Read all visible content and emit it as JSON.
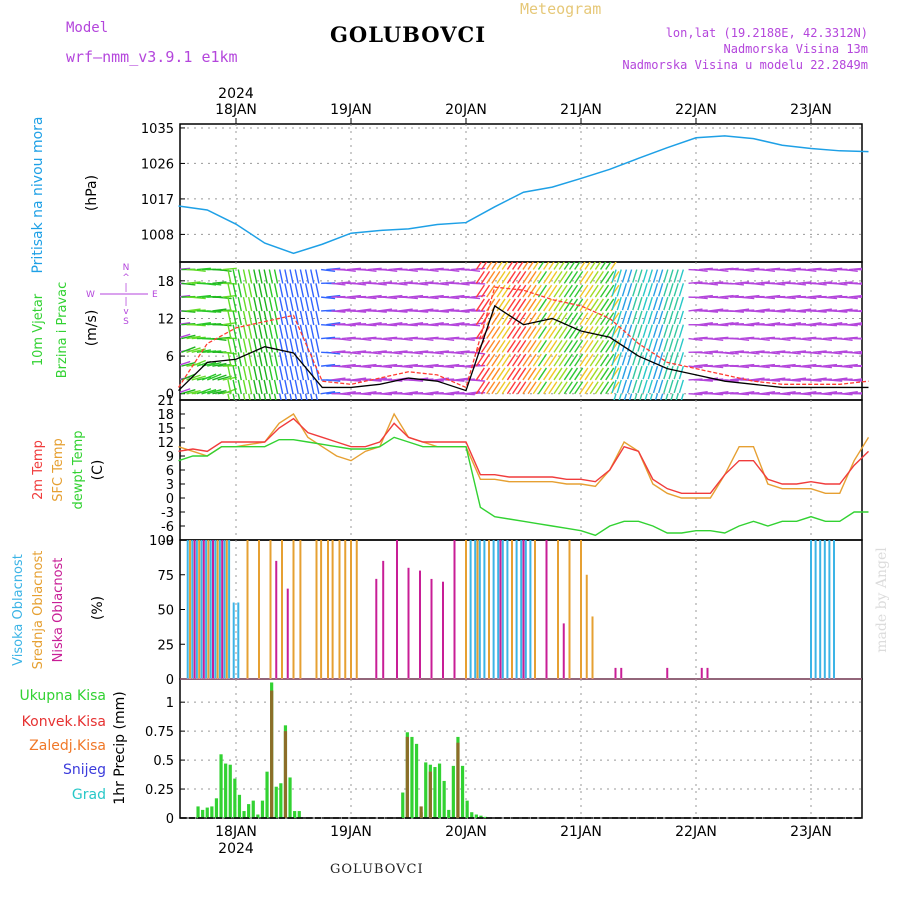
{
  "header": {
    "model_label": "Model",
    "model_name": "wrf—nmm_v3.9.1  e1km",
    "station": "GOLUBOVCI",
    "product": "Meteogram",
    "lonlat": "lon,lat (19.2188E, 42.3312N)",
    "elevation": "Nadmorska Visina 13m",
    "model_elevation": "Nadmorska Visina u modelu 22.2849m",
    "footer_station": "GOLUBOVCI",
    "credit": "made by Angel"
  },
  "colors": {
    "pressure": "#1ea0e6",
    "wind_speed": "#000000",
    "wind_gust": "#ff3c32",
    "t2m": "#f03c3c",
    "tsfc": "#e6a032",
    "dewpt": "#32d232",
    "cloud_high": "#3cb4e6",
    "cloud_mid": "#e6a032",
    "cloud_low": "#c81e96",
    "precip_total": "#32d232",
    "precip_conv": "#e63232",
    "precip_large": "#f07828",
    "snow": "#3c3cdc",
    "grad": "#28c8c8",
    "purple": "#b446dc"
  },
  "chart_data": [
    {
      "type": "line",
      "panel": "pressure",
      "ylabel_blue": "Pritisak na nivou mora",
      "ylabel_units": "(hPa)",
      "x_unit": "days since 2024-01-18 00:00",
      "ylim": [
        1001,
        1036
      ],
      "y_ticks": [
        1008,
        1017,
        1026,
        1035
      ],
      "grid": true,
      "x": [
        -0.5,
        -0.25,
        0,
        0.25,
        0.5,
        0.75,
        1,
        1.25,
        1.5,
        1.75,
        2,
        2.25,
        2.5,
        2.75,
        3,
        3.25,
        3.5,
        3.75,
        4,
        4.25,
        4.5,
        4.75,
        5,
        5.25,
        5.5
      ],
      "values": [
        1015.2,
        1014.2,
        1010.6,
        1005.8,
        1003.2,
        1005.5,
        1008.3,
        1009.0,
        1009.4,
        1010.5,
        1011.0,
        1015.0,
        1018.7,
        1020.0,
        1022.2,
        1024.5,
        1027.3,
        1030.0,
        1032.5,
        1033.0,
        1032.3,
        1030.6,
        1029.8,
        1029.2,
        1029.0
      ]
    },
    {
      "type": "line",
      "panel": "wind",
      "ylabel_green": [
        "10m Vjetar",
        "Brzina i Pravac"
      ],
      "ylabel_units": "(m/s)",
      "compass": [
        "N",
        "^",
        "|",
        "W",
        "E",
        "|",
        "v",
        "S"
      ],
      "ylim": [
        -1,
        21
      ],
      "y_ticks": [
        0,
        6,
        12,
        18
      ],
      "series": [
        {
          "name": "speed",
          "x": [
            -0.5,
            -0.25,
            0,
            0.25,
            0.5,
            0.75,
            1,
            1.25,
            1.5,
            1.75,
            2,
            2.25,
            2.5,
            2.75,
            3,
            3.25,
            3.5,
            3.75,
            4,
            4.25,
            4.5,
            4.75,
            5,
            5.25,
            5.5
          ],
          "values": [
            0.5,
            5.0,
            5.5,
            7.5,
            6.5,
            1.0,
            1.0,
            1.5,
            2.5,
            2.0,
            0.5,
            14.0,
            11.0,
            12.0,
            10.0,
            9.0,
            6.0,
            4.0,
            3.0,
            2.0,
            1.5,
            1.0,
            1.0,
            1.0,
            1.0
          ]
        },
        {
          "name": "gust",
          "x": [
            -0.5,
            -0.25,
            0,
            0.25,
            0.5,
            0.75,
            1,
            1.25,
            1.5,
            1.75,
            2,
            2.25,
            2.5,
            2.75,
            3,
            3.25,
            3.5,
            3.75,
            4,
            4.25,
            4.5,
            4.75,
            5,
            5.25,
            5.5
          ],
          "values": [
            1.0,
            8.0,
            10.5,
            11.5,
            12.5,
            2.0,
            1.5,
            2.5,
            3.5,
            3.0,
            1.0,
            17.0,
            16.5,
            15.0,
            14.0,
            12.0,
            8.0,
            5.0,
            4.0,
            3.0,
            2.0,
            1.5,
            1.5,
            1.5,
            2.0
          ]
        }
      ]
    },
    {
      "type": "line",
      "panel": "temperature",
      "ylabel_red": "2m Temp",
      "ylabel_orange": "SFC Temp",
      "ylabel_green": "dewpt Temp",
      "ylabel_units": "(C)",
      "ylim": [
        -9,
        21
      ],
      "y_ticks": [
        -9,
        -6,
        -3,
        0,
        3,
        6,
        9,
        12,
        15,
        18,
        21
      ],
      "series": [
        {
          "name": "2m Temp",
          "x": [
            -0.5,
            -0.375,
            -0.25,
            -0.125,
            0,
            0.125,
            0.25,
            0.375,
            0.5,
            0.625,
            0.75,
            0.875,
            1,
            1.125,
            1.25,
            1.375,
            1.5,
            1.625,
            1.75,
            1.875,
            2,
            2.125,
            2.25,
            2.375,
            2.5,
            2.625,
            2.75,
            2.875,
            3,
            3.125,
            3.25,
            3.375,
            3.5,
            3.625,
            3.75,
            3.875,
            4,
            4.125,
            4.25,
            4.375,
            4.5,
            4.625,
            4.75,
            4.875,
            5,
            5.125,
            5.25,
            5.375,
            5.5
          ],
          "values": [
            10,
            10.5,
            10,
            12,
            12,
            12,
            12,
            15,
            17,
            14,
            13,
            12,
            11,
            11,
            12,
            16,
            13,
            12,
            12,
            12,
            12,
            5,
            5,
            4.5,
            4.5,
            4.5,
            4.5,
            4,
            4,
            3.5,
            6,
            11,
            10,
            4,
            2,
            1,
            1,
            1,
            5,
            8,
            8,
            4,
            3,
            3,
            3.5,
            3,
            3,
            7,
            10
          ]
        },
        {
          "name": "SFC Temp",
          "x": [
            -0.5,
            -0.375,
            -0.25,
            -0.125,
            0,
            0.125,
            0.25,
            0.375,
            0.5,
            0.625,
            0.75,
            0.875,
            1,
            1.125,
            1.25,
            1.375,
            1.5,
            1.625,
            1.75,
            1.875,
            2,
            2.125,
            2.25,
            2.375,
            2.5,
            2.625,
            2.75,
            2.875,
            3,
            3.125,
            3.25,
            3.375,
            3.5,
            3.625,
            3.75,
            3.875,
            4,
            4.125,
            4.25,
            4.375,
            4.5,
            4.625,
            4.75,
            4.875,
            5,
            5.125,
            5.25,
            5.375,
            5.5
          ],
          "values": [
            11,
            10,
            9,
            11,
            11,
            11.5,
            12,
            16,
            18,
            13,
            11,
            9,
            8,
            10,
            11,
            18,
            13,
            12,
            11,
            11,
            11,
            4,
            4,
            3.5,
            3.5,
            3.5,
            3.5,
            3,
            3,
            2.5,
            6,
            12,
            10,
            3,
            1,
            0,
            0,
            0,
            5,
            11,
            11,
            3,
            2,
            2,
            2,
            1,
            1,
            8,
            13
          ]
        },
        {
          "name": "dewpt Temp",
          "x": [
            -0.5,
            -0.375,
            -0.25,
            -0.125,
            0,
            0.125,
            0.25,
            0.375,
            0.5,
            0.625,
            0.75,
            0.875,
            1,
            1.125,
            1.25,
            1.375,
            1.5,
            1.625,
            1.75,
            1.875,
            2,
            2.125,
            2.25,
            2.375,
            2.5,
            2.625,
            2.75,
            2.875,
            3,
            3.125,
            3.25,
            3.375,
            3.5,
            3.625,
            3.75,
            3.875,
            4,
            4.125,
            4.25,
            4.375,
            4.5,
            4.625,
            4.75,
            4.875,
            5,
            5.125,
            5.25,
            5.375,
            5.5
          ],
          "values": [
            8,
            9,
            9,
            11,
            11,
            11,
            11,
            12.5,
            12.5,
            12,
            11.5,
            11,
            10.5,
            10.5,
            11,
            13,
            12,
            11,
            11,
            11,
            11,
            -2,
            -4,
            -4.5,
            -5,
            -5.5,
            -6,
            -6.5,
            -7,
            -8,
            -6,
            -5,
            -5,
            -6,
            -7.5,
            -7.5,
            -7,
            -7,
            -7.5,
            -6,
            -5,
            -6,
            -5,
            -5,
            -4,
            -5,
            -5,
            -3,
            -3
          ]
        }
      ]
    },
    {
      "type": "bar",
      "panel": "cloud",
      "ylabel_blue": "Visoka Oblacnost",
      "ylabel_orange": "Srednja Oblacnost",
      "ylabel_magenta": "Niska Oblacnost",
      "ylabel_units": "(%)",
      "ylim": [
        0,
        100
      ],
      "y_ticks": [
        0,
        25,
        50,
        75,
        100
      ],
      "series": [
        {
          "name": "Visoka Oblacnost",
          "x": [
            -0.42,
            -0.38,
            -0.34,
            -0.3,
            -0.26,
            -0.22,
            -0.18,
            -0.14,
            -0.1,
            -0.06,
            -0.02,
            0.02,
            2.0,
            2.04,
            2.08,
            2.12,
            2.16,
            2.2,
            2.24,
            2.28,
            2.32,
            2.36,
            2.4,
            2.44,
            2.48,
            2.52,
            2.56,
            2.6,
            5.0,
            5.04,
            5.08,
            5.12,
            5.16,
            5.2
          ],
          "values": [
            100,
            100,
            100,
            100,
            100,
            100,
            100,
            100,
            100,
            100,
            55,
            55,
            100,
            100,
            100,
            100,
            100,
            100,
            100,
            100,
            100,
            100,
            100,
            100,
            100,
            100,
            100,
            100,
            100,
            100,
            100,
            100,
            100,
            100
          ]
        },
        {
          "name": "Srednja Oblacnost",
          "x": [
            -0.4,
            -0.32,
            -0.24,
            -0.16,
            -0.08,
            0.1,
            0.2,
            0.3,
            0.4,
            0.5,
            0.56,
            0.7,
            0.74,
            0.8,
            0.84,
            0.9,
            0.95,
            1.0,
            1.05,
            2.0,
            2.1,
            2.2,
            2.3,
            2.4,
            2.5,
            2.6,
            2.7,
            2.8,
            2.9,
            3.0,
            3.05,
            3.1
          ],
          "values": [
            100,
            100,
            100,
            100,
            100,
            100,
            100,
            100,
            100,
            100,
            100,
            100,
            100,
            100,
            100,
            100,
            100,
            100,
            100,
            100,
            100,
            100,
            100,
            100,
            100,
            100,
            100,
            100,
            100,
            100,
            75,
            45
          ]
        },
        {
          "name": "Niska Oblacnost",
          "x": [
            -0.36,
            -0.28,
            -0.2,
            -0.12,
            0.35,
            0.45,
            1.22,
            1.28,
            1.4,
            1.5,
            1.6,
            1.7,
            1.8,
            1.9,
            2.3,
            2.5,
            2.7,
            2.85,
            3.3,
            3.35,
            3.75,
            4.05,
            4.1
          ],
          "values": [
            100,
            100,
            100,
            100,
            85,
            65,
            72,
            85,
            100,
            80,
            78,
            72,
            70,
            100,
            100,
            100,
            100,
            40,
            8,
            8,
            8,
            8,
            8
          ]
        }
      ]
    },
    {
      "type": "bar",
      "panel": "precip",
      "ylabel_units": "1hr Precip (mm)",
      "legend": [
        "Ukupna Kisa",
        "Konvek.Kisa",
        "Zaledj.Kisa",
        "Snijeg",
        "Grad"
      ],
      "ylim": [
        0,
        1.2
      ],
      "y_ticks": [
        0,
        0.25,
        0.5,
        0.75,
        1
      ],
      "series": [
        {
          "name": "Ukupna Kisa",
          "x": [
            -0.33,
            -0.29,
            -0.25,
            -0.21,
            -0.17,
            -0.13,
            -0.09,
            -0.05,
            -0.01,
            0.03,
            0.07,
            0.11,
            0.15,
            0.19,
            0.23,
            0.27,
            0.31,
            0.35,
            0.39,
            0.43,
            0.47,
            0.51,
            0.55,
            1.45,
            1.49,
            1.53,
            1.57,
            1.61,
            1.65,
            1.69,
            1.73,
            1.77,
            1.81,
            1.85,
            1.89,
            1.93,
            1.97,
            2.01,
            2.05,
            2.09,
            2.13,
            2.17
          ],
          "values": [
            0.1,
            0.07,
            0.09,
            0.1,
            0.17,
            0.55,
            0.47,
            0.46,
            0.34,
            0.2,
            0.06,
            0.12,
            0.15,
            0.03,
            0.15,
            0.4,
            1.17,
            0.27,
            0.3,
            0.8,
            0.35,
            0.06,
            0.06,
            0.22,
            0.74,
            0.7,
            0.64,
            0.05,
            0.48,
            0.46,
            0.44,
            0.47,
            0.32,
            0.07,
            0.45,
            0.7,
            0.45,
            0.15,
            0.05,
            0.03,
            0.02,
            0.01
          ]
        },
        {
          "name": "Konvek.Kisa",
          "x": [
            0.31,
            0.43,
            1.49,
            1.61,
            1.69,
            1.93
          ],
          "values": [
            1.1,
            0.75,
            0.7,
            0.1,
            0.4,
            0.65
          ]
        }
      ]
    }
  ],
  "x_axis": {
    "day_labels": [
      "18JAN",
      "19JAN",
      "20JAN",
      "21JAN",
      "22JAN",
      "23JAN"
    ],
    "year_label": "2024"
  }
}
